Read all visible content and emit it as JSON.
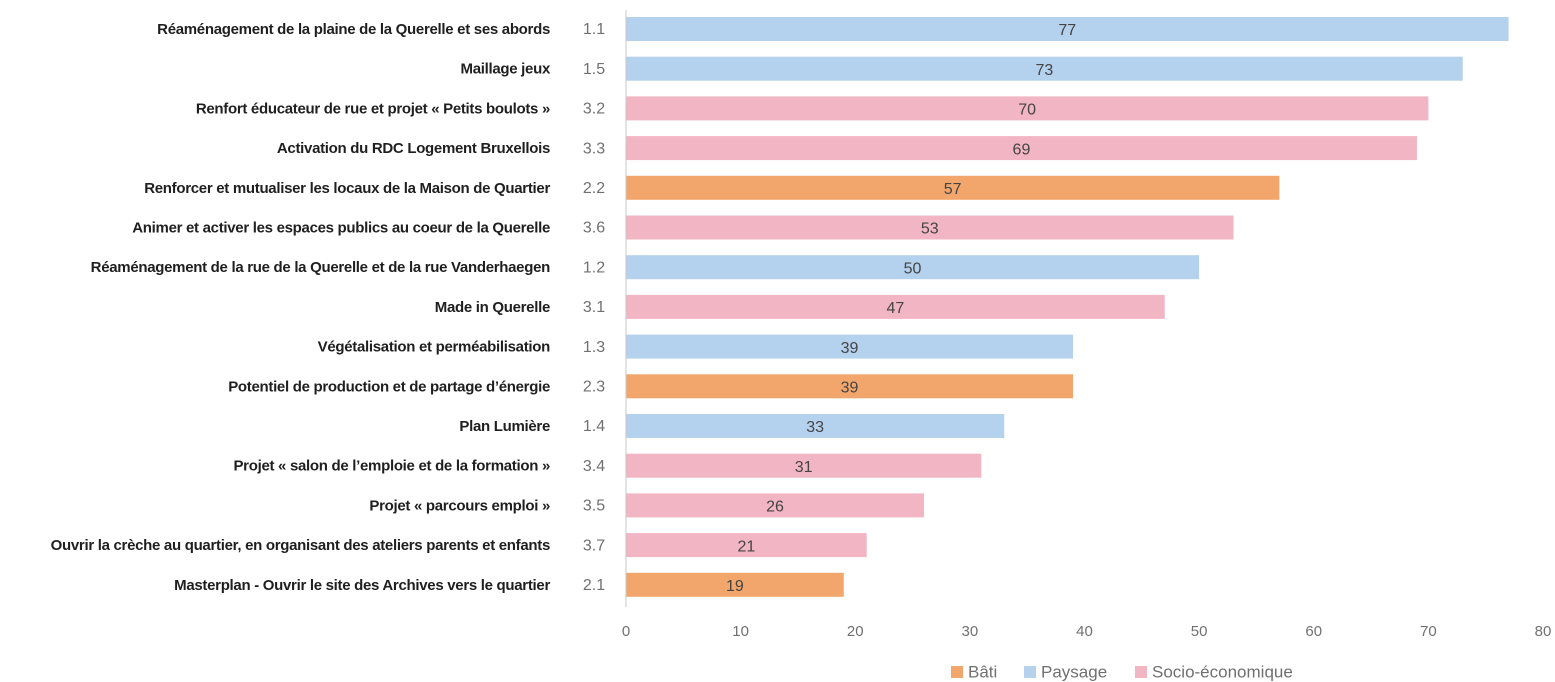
{
  "chart_data": {
    "type": "bar",
    "orientation": "horizontal",
    "title": "",
    "xlabel": "",
    "ylabel": "",
    "xlim": [
      0,
      80
    ],
    "xticks": [
      0,
      10,
      20,
      30,
      40,
      50,
      60,
      70,
      80
    ],
    "grid": false,
    "legend_position": "bottom-right",
    "legend": [
      {
        "name": "Bâti",
        "color": "#f2a66c"
      },
      {
        "name": "Paysage",
        "color": "#b4d1ed"
      },
      {
        "name": "Socio-économique",
        "color": "#f2b5c3"
      }
    ],
    "bars": [
      {
        "label": "Réaménagement de la plaine de la Querelle et ses abords",
        "code": "1.1",
        "value": 77,
        "group": "Paysage"
      },
      {
        "label": "Maillage jeux",
        "code": "1.5",
        "value": 73,
        "group": "Paysage"
      },
      {
        "label": "Renfort éducateur de rue et projet « Petits boulots »",
        "code": "3.2",
        "value": 70,
        "group": "Socio-économique"
      },
      {
        "label": "Activation du RDC Logement Bruxellois",
        "code": "3.3",
        "value": 69,
        "group": "Socio-économique"
      },
      {
        "label": "Renforcer et mutualiser les locaux de la Maison de Quartier",
        "code": "2.2",
        "value": 57,
        "group": "Bâti"
      },
      {
        "label": "Animer et activer les espaces publics au coeur de la Querelle",
        "code": "3.6",
        "value": 53,
        "group": "Socio-économique"
      },
      {
        "label": "Réaménagement de la rue de la Querelle et de la rue Vanderhaegen",
        "code": "1.2",
        "value": 50,
        "group": "Paysage"
      },
      {
        "label": "Made in Querelle",
        "code": "3.1",
        "value": 47,
        "group": "Socio-économique"
      },
      {
        "label": "Végétalisation et perméabilisation",
        "code": "1.3",
        "value": 39,
        "group": "Paysage"
      },
      {
        "label": "Potentiel de production et de partage d’énergie",
        "code": "2.3",
        "value": 39,
        "group": "Bâti"
      },
      {
        "label": "Plan Lumière",
        "code": "1.4",
        "value": 33,
        "group": "Paysage"
      },
      {
        "label": "Projet « salon de l’emploie et de la formation »",
        "code": "3.4",
        "value": 31,
        "group": "Socio-économique"
      },
      {
        "label": "Projet « parcours emploi »",
        "code": "3.5",
        "value": 26,
        "group": "Socio-économique"
      },
      {
        "label": "Ouvrir la crèche au quartier, en organisant des ateliers parents et enfants",
        "code": "3.7",
        "value": 21,
        "group": "Socio-économique"
      },
      {
        "label": "Masterplan - Ouvrir le site des Archives vers le quartier",
        "code": "2.1",
        "value": 19,
        "group": "Bâti"
      }
    ]
  }
}
